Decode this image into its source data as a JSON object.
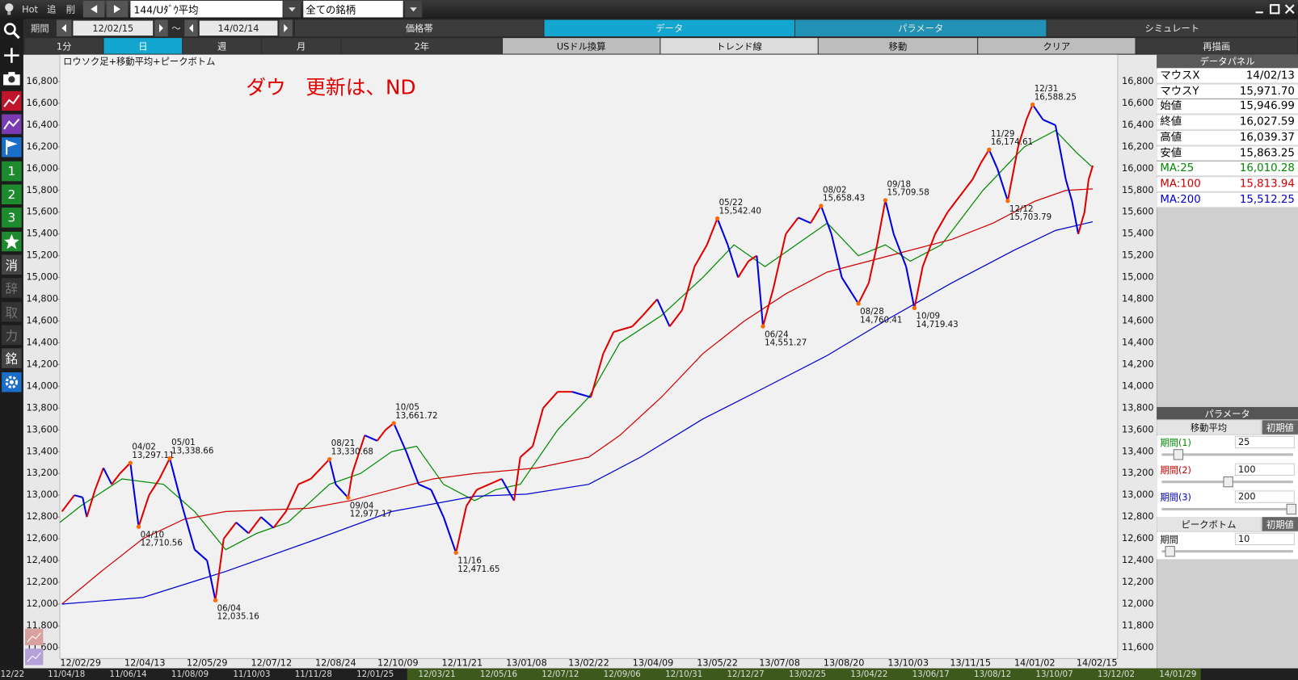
{
  "toolbar": {
    "hot": "Hot",
    "add": "追",
    "delete": "削",
    "symbol": "144/Uﾀﾞｳ平均",
    "universe": "全ての銘柄"
  },
  "period_bar": {
    "label": "期間",
    "from": "12/02/15",
    "tilde": "～",
    "to": "14/02/14"
  },
  "tabs": [
    "価格帯",
    "データ",
    "パラメータ",
    "シミュレート"
  ],
  "intervals": [
    "1分",
    "日",
    "週",
    "月",
    "2年",
    "USドル換算",
    "トレンド線",
    "移動",
    "クリア",
    "再描画"
  ],
  "side_buttons": [
    "1",
    "2",
    "3",
    "消",
    "辞",
    "取",
    "力",
    "銘"
  ],
  "data_panel": {
    "title": "データパネル",
    "rows": [
      [
        "マウスX",
        "14/02/13"
      ],
      [
        "マウスY",
        "15,971.70"
      ],
      [
        "始値",
        "15,946.99"
      ],
      [
        "終値",
        "16,027.59"
      ],
      [
        "高値",
        "16,039.37"
      ],
      [
        "安値",
        "15,863.25"
      ]
    ]
  },
  "parameter_panel": {
    "title": "パラメータ",
    "ma_title": "移動平均",
    "reset": "初期値",
    "rows": [
      {
        "label": "期間(1)",
        "value": 25
      },
      {
        "label": "期間(2)",
        "value": 100
      },
      {
        "label": "期間(3)",
        "value": 200
      }
    ],
    "peak_title": "ピークボトム",
    "peak_reset": "初期値",
    "peak_row": {
      "label": "期間",
      "value": 10
    }
  },
  "overview_dates": [
    "12/22",
    "11/04/18",
    "11/06/14",
    "11/08/09",
    "11/10/03",
    "11/11/28",
    "12/01/25",
    "12/03/21",
    "12/05/16",
    "12/07/12",
    "12/09/06",
    "12/10/31",
    "12/12/27",
    "13/02/25",
    "13/04/22",
    "13/06/17",
    "13/08/12",
    "13/10/07",
    "13/12/02",
    "14/01/29"
  ],
  "chart_data": {
    "type": "stock",
    "title": "ロウソク足+移動平均+ピークボトム",
    "annotation": "ダウ　更新は、ND",
    "xlim": [
      0,
      510
    ],
    "xticks": [
      {
        "value": 10,
        "label": "12/02/29"
      },
      {
        "value": 41,
        "label": "12/04/13"
      },
      {
        "value": 71,
        "label": "12/05/29"
      },
      {
        "value": 102,
        "label": "12/07/12"
      },
      {
        "value": 133,
        "label": "12/08/24"
      },
      {
        "value": 163,
        "label": "12/10/09"
      },
      {
        "value": 194,
        "label": "12/11/21"
      },
      {
        "value": 225,
        "label": "13/01/08"
      },
      {
        "value": 255,
        "label": "13/02/22"
      },
      {
        "value": 286,
        "label": "13/04/09"
      },
      {
        "value": 317,
        "label": "13/05/22"
      },
      {
        "value": 347,
        "label": "13/07/08"
      },
      {
        "value": 378,
        "label": "13/08/20"
      },
      {
        "value": 409,
        "label": "13/10/03"
      },
      {
        "value": 439,
        "label": "13/11/15"
      },
      {
        "value": 470,
        "label": "14/01/02"
      },
      {
        "value": 500,
        "label": "14/02/15"
      }
    ],
    "ylim": [
      11500,
      17040
    ],
    "yticks": [
      {
        "value": 11600,
        "label": "11,600"
      },
      {
        "value": 11800,
        "label": "11,800"
      },
      {
        "value": 12000,
        "label": "12,000"
      },
      {
        "value": 12200,
        "label": "12,200"
      },
      {
        "value": 12400,
        "label": "12,400"
      },
      {
        "value": 12600,
        "label": "12,600"
      },
      {
        "value": 12800,
        "label": "12,800"
      },
      {
        "value": 13000,
        "label": "13,000"
      },
      {
        "value": 13200,
        "label": "13,200"
      },
      {
        "value": 13400,
        "label": "13,400"
      },
      {
        "value": 13600,
        "label": "13,600"
      },
      {
        "value": 13800,
        "label": "13,800"
      },
      {
        "value": 14000,
        "label": "14,000"
      },
      {
        "value": 14200,
        "label": "14,200"
      },
      {
        "value": 14400,
        "label": "14,400"
      },
      {
        "value": 14600,
        "label": "14,600"
      },
      {
        "value": 14800,
        "label": "14,800"
      },
      {
        "value": 15000,
        "label": "15,000"
      },
      {
        "value": 15200,
        "label": "15,200"
      },
      {
        "value": 15400,
        "label": "15,400"
      },
      {
        "value": 15600,
        "label": "15,600"
      },
      {
        "value": 15800,
        "label": "15,800"
      },
      {
        "value": 16000,
        "label": "16,000"
      },
      {
        "value": 16200,
        "label": "16,200"
      },
      {
        "value": 16400,
        "label": "16,400"
      },
      {
        "value": 16600,
        "label": "16,600"
      },
      {
        "value": 16800,
        "label": "16,800"
      }
    ],
    "grid": false,
    "price": {
      "up_color": "#e00000",
      "down_color": "#0000dd",
      "x": [
        1,
        7,
        11,
        13,
        17,
        21,
        25,
        29,
        34,
        38,
        43,
        48,
        53,
        59,
        65,
        71,
        75,
        79,
        85,
        91,
        97,
        103,
        109,
        115,
        121,
        126,
        130,
        133,
        139,
        141,
        147,
        153,
        157,
        161,
        167,
        173,
        179,
        185,
        191,
        196,
        201,
        207,
        213,
        219,
        222,
        228,
        233,
        240,
        247,
        256,
        262,
        267,
        276,
        281,
        288,
        294,
        300,
        306,
        312,
        317,
        322,
        327,
        332,
        336,
        339,
        344,
        350,
        356,
        362,
        367,
        372,
        377,
        382,
        385,
        390,
        394,
        398,
        402,
        408,
        412,
        416,
        422,
        428,
        434,
        440,
        444,
        448,
        452,
        457,
        462,
        466,
        469,
        474,
        480,
        485,
        488,
        491,
        494,
        496,
        498
      ],
      "values": [
        12850,
        13000,
        12980,
        12800,
        13050,
        13250,
        13100,
        13200,
        13297.11,
        12710.56,
        13000,
        13150,
        13338.66,
        12900,
        12500,
        12400,
        12035.16,
        12600,
        12750,
        12650,
        12800,
        12700,
        12850,
        13100,
        13150,
        13250,
        13330.68,
        13100,
        12977.17,
        13200,
        13550,
        13500,
        13600,
        13661.72,
        13400,
        13100,
        13050,
        12800,
        12471.65,
        12900,
        13050,
        13100,
        13150,
        12950,
        13350,
        13450,
        13800,
        13950,
        13950,
        13900,
        14300,
        14500,
        14550,
        14650,
        14800,
        14550,
        14700,
        15100,
        15300,
        15542.4,
        15300,
        15000,
        15150,
        15200,
        14551.27,
        14900,
        15400,
        15550,
        15500,
        15658.43,
        15400,
        15000,
        14850,
        14760.41,
        14950,
        15300,
        15709.58,
        15400,
        15100,
        14719.43,
        15100,
        15400,
        15600,
        15750,
        15900,
        16050,
        16174.61,
        16000,
        15703.79,
        16200,
        16450,
        16588.25,
        16450,
        16400,
        15900,
        15700,
        15400,
        15600,
        15900,
        16027.59
      ]
    },
    "series": [
      {
        "name": "MA:25",
        "color": "#008a00",
        "current": "16,010.28",
        "x": [
          0,
          10,
          30,
          50,
          65,
          80,
          95,
          110,
          130,
          145,
          160,
          172,
          185,
          200,
          210,
          222,
          240,
          255,
          270,
          290,
          310,
          325,
          340,
          355,
          370,
          385,
          398,
          410,
          425,
          445,
          465,
          480,
          490,
          498
        ],
        "values": [
          12750,
          12900,
          13150,
          13100,
          12850,
          12500,
          12650,
          12750,
          13100,
          13200,
          13400,
          13450,
          13100,
          12950,
          13050,
          13100,
          13600,
          13900,
          14400,
          14650,
          15000,
          15300,
          15100,
          15300,
          15500,
          15200,
          15300,
          15150,
          15300,
          15800,
          16200,
          16350,
          16150,
          16010.28
        ]
      },
      {
        "name": "MA:100",
        "color": "#d00000",
        "current": "15,813.94",
        "x": [
          1,
          20,
          40,
          60,
          80,
          120,
          140,
          160,
          180,
          200,
          230,
          255,
          270,
          290,
          310,
          330,
          350,
          370,
          390,
          410,
          430,
          450,
          470,
          485,
          498
        ],
        "values": [
          12000,
          12300,
          12600,
          12780,
          12850,
          12880,
          12950,
          13050,
          13150,
          13200,
          13250,
          13350,
          13550,
          13900,
          14300,
          14600,
          14850,
          15050,
          15150,
          15250,
          15350,
          15500,
          15700,
          15800,
          15813.94
        ]
      },
      {
        "name": "MA:200",
        "color": "#0000d0",
        "current": "15,512.25",
        "x": [
          1,
          40,
          80,
          120,
          160,
          200,
          225,
          255,
          280,
          310,
          340,
          370,
          400,
          430,
          460,
          480,
          498
        ],
        "values": [
          12000,
          12060,
          12300,
          12570,
          12850,
          12990,
          13010,
          13100,
          13350,
          13700,
          13990,
          14284,
          14626,
          14950,
          15250,
          15432,
          15512.25
        ]
      }
    ],
    "peaks": {
      "color": "#ff6a00",
      "x": [
        34,
        38,
        53,
        75,
        130,
        139,
        161,
        191,
        317,
        339,
        367,
        385,
        398,
        412,
        448,
        457,
        469
      ],
      "dates": [
        "04/02",
        "04/10",
        "05/01",
        "06/04",
        "08/21",
        "09/04",
        "10/05",
        "11/16",
        "05/22",
        "06/24",
        "08/02",
        "08/28",
        "09/18",
        "10/09",
        "11/29",
        "12/12",
        "12/31"
      ],
      "values": [
        13297.11,
        12710.56,
        13338.66,
        12035.16,
        13330.68,
        12977.17,
        13661.72,
        12471.65,
        15542.4,
        14551.27,
        15658.43,
        14760.41,
        15709.58,
        14719.43,
        16174.61,
        15703.79,
        16588.25
      ],
      "value_labels": [
        "13,297.11",
        "12,710.56",
        "13,338.66",
        "12,035.16",
        "13,330.68",
        "12,977.17",
        "13,661.72",
        "12,471.65",
        "15,542.40",
        "14,551.27",
        "15,658.43",
        "14,760.41",
        "15,709.58",
        "14,719.43",
        "16,174.61",
        "15,703.79",
        "16,588.25"
      ]
    }
  }
}
